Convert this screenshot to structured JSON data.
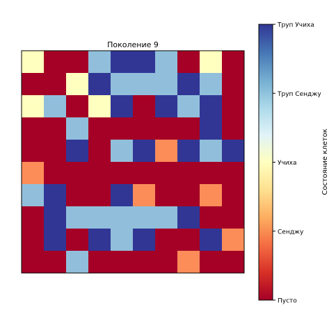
{
  "chart_data": {
    "type": "heatmap",
    "title": "Поколение 9",
    "rows": 10,
    "cols": 10,
    "grid": false,
    "axes_visible": false,
    "values": [
      [
        2,
        0,
        0,
        3,
        4,
        4,
        3,
        0,
        2,
        0
      ],
      [
        0,
        0,
        2,
        4,
        3,
        3,
        3,
        4,
        3,
        0
      ],
      [
        2,
        3,
        0,
        2,
        4,
        0,
        4,
        3,
        4,
        0
      ],
      [
        0,
        0,
        3,
        0,
        0,
        0,
        0,
        0,
        4,
        0
      ],
      [
        0,
        0,
        4,
        0,
        3,
        4,
        1,
        4,
        3,
        4
      ],
      [
        1,
        0,
        0,
        0,
        0,
        0,
        0,
        0,
        0,
        0
      ],
      [
        3,
        4,
        0,
        0,
        4,
        1,
        0,
        0,
        1,
        0
      ],
      [
        0,
        4,
        3,
        3,
        3,
        3,
        3,
        4,
        0,
        0
      ],
      [
        0,
        4,
        0,
        4,
        3,
        4,
        0,
        0,
        4,
        1
      ],
      [
        0,
        0,
        3,
        0,
        0,
        0,
        0,
        1,
        0,
        0
      ]
    ],
    "state_colors": [
      "#a50026",
      "#fc8d59",
      "#ffffbf",
      "#91bfdb",
      "#313695"
    ],
    "colorbar": {
      "label": "Состояние клеток",
      "range": [
        0,
        4
      ],
      "ticks": [
        {
          "value": 4,
          "label": "Труп Учиха"
        },
        {
          "value": 3,
          "label": "Труп Сенджу"
        },
        {
          "value": 2,
          "label": "Учиха"
        },
        {
          "value": 1,
          "label": "Сенджу"
        },
        {
          "value": 0,
          "label": "Пусто"
        }
      ],
      "gradient": [
        "#a50026",
        "#d73027",
        "#f46d43",
        "#fdae61",
        "#fee090",
        "#ffffbf",
        "#e0f3f8",
        "#abd9e9",
        "#74add1",
        "#4575b4",
        "#313695"
      ]
    }
  }
}
